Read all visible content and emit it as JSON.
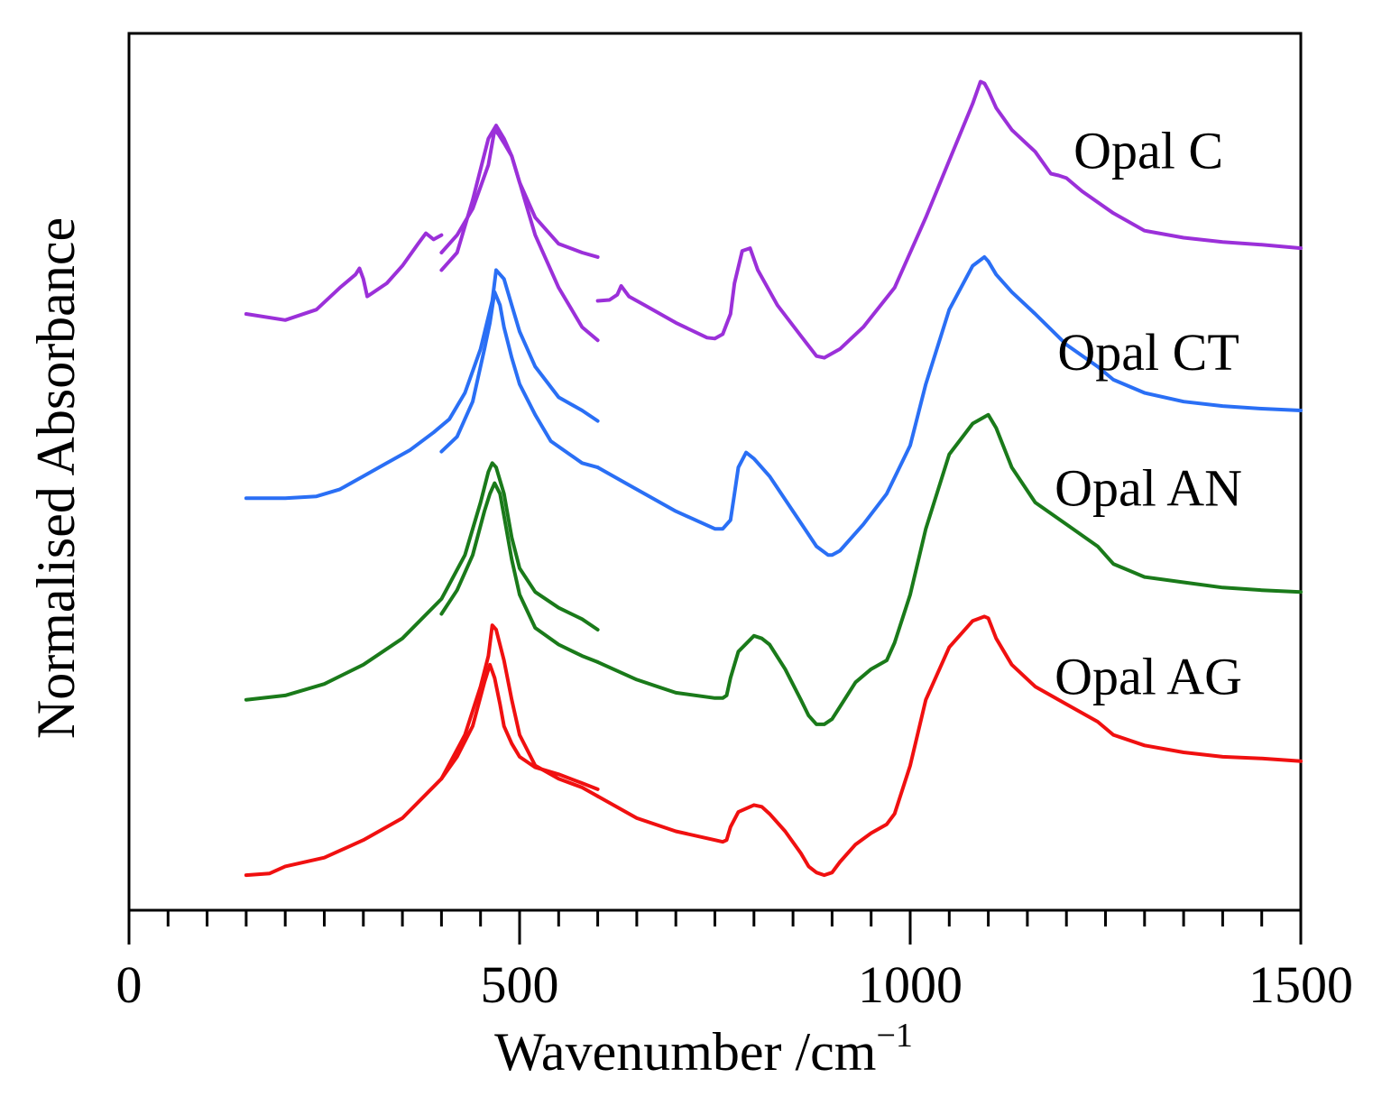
{
  "chart_data": {
    "type": "line",
    "title": "",
    "xlabel": "Wavenumber /cm",
    "xlabel_superscript": "−1",
    "ylabel": "Normalised Absorbance",
    "xlim": [
      0,
      1500
    ],
    "x_major_ticks": [
      0,
      500,
      1000,
      1500
    ],
    "x_tick_labels": [
      "0",
      "500",
      "1000",
      "1500"
    ],
    "x_minor_step": 50,
    "y_ticks_shown": false,
    "units_note": "y values are offset normalised absorbance on an arbitrary 0-100 scale",
    "ylim": [
      0,
      100
    ],
    "series": [
      {
        "name": "Opal C",
        "color": "#9b30d9",
        "segments": [
          {
            "x": [
              150,
              200,
              240,
              270,
              290,
              295,
              300,
              305,
              310,
              330,
              350,
              370,
              380,
              390,
              400
            ],
            "y": [
              68,
              67.3,
              68.5,
              71,
              72.5,
              73.2,
              72,
              70,
              70.3,
              71.5,
              73.5,
              76,
              77.2,
              76.5,
              77
            ]
          },
          {
            "x": [
              400,
              410,
              420,
              440,
              460,
              470,
              480,
              490,
              500,
              520,
              550,
              580,
              600
            ],
            "y": [
              73,
              74,
              75,
              81,
              88,
              89.5,
              88,
              86,
              83,
              79,
              76,
              75,
              74.5
            ]
          },
          {
            "x": [
              400,
              420,
              440,
              460,
              468,
              473,
              480,
              490,
              500,
              520,
              550,
              580,
              600
            ],
            "y": [
              75,
              77,
              80,
              85,
              89,
              88.5,
              87.5,
              86,
              83,
              77,
              71,
              66.5,
              65
            ]
          },
          {
            "x": [
              600,
              615,
              625,
              630,
              640,
              660,
              700,
              740,
              750,
              760,
              770,
              775,
              785,
              795,
              805,
              830,
              860,
              880,
              890,
              910,
              940,
              980,
              1020,
              1050,
              1080,
              1090,
              1095,
              1100,
              1110,
              1130,
              1160,
              1180,
              1190,
              1200,
              1220,
              1260,
              1300,
              1350,
              1400,
              1450,
              1500
            ],
            "y": [
              69.5,
              69.6,
              70.2,
              71.2,
              70,
              69,
              67,
              65.3,
              65.2,
              65.7,
              68,
              71.5,
              75.2,
              75.5,
              73,
              69,
              65.5,
              63.2,
              63,
              64,
              66.5,
              71,
              79,
              85.5,
              92,
              94.5,
              94.3,
              93.5,
              91.5,
              89,
              86.5,
              84,
              83.8,
              83.5,
              82,
              79.5,
              77.5,
              76.7,
              76.2,
              75.9,
              75.5
            ]
          }
        ]
      },
      {
        "name": "Opal CT",
        "color": "#2a6ff5",
        "segments": [
          {
            "x": [
              150,
              200,
              240,
              270,
              300,
              330,
              360,
              390,
              410,
              430,
              450,
              465,
              470,
              480,
              490,
              500,
              520,
              550,
              580,
              600
            ],
            "y": [
              47,
              47,
              47.2,
              48,
              49.5,
              51,
              52.5,
              54.5,
              56,
              59,
              64,
              69.5,
              73,
              72,
              69,
              66,
              62,
              58.5,
              57,
              55.8
            ]
          },
          {
            "x": [
              400,
              420,
              440,
              455,
              462,
              468,
              475,
              480,
              490,
              500,
              520,
              540,
              580,
              600
            ],
            "y": [
              52.3,
              54,
              58,
              64,
              67,
              70.5,
              69,
              66.5,
              63,
              60,
              56.5,
              53.5,
              51,
              50.5
            ]
          },
          {
            "x": [
              600,
              640,
              700,
              750,
              760,
              770,
              775,
              780,
              790,
              800,
              820,
              850,
              880,
              895,
              900,
              910,
              940,
              970,
              1000,
              1020,
              1050,
              1080,
              1095,
              1100,
              1110,
              1130,
              1160,
              1200,
              1240,
              1260,
              1300,
              1350,
              1400,
              1450,
              1500
            ],
            "y": [
              50.5,
              48.5,
              45.5,
              43.5,
              43.5,
              44.5,
              47.5,
              50.5,
              52.2,
              51.5,
              49.5,
              45.5,
              41.5,
              40.5,
              40.5,
              41,
              44,
              47.5,
              53,
              60,
              68.5,
              73.5,
              74.5,
              74,
              72.5,
              70.5,
              68,
              64.5,
              62,
              60.5,
              59,
              58,
              57.5,
              57.2,
              57
            ]
          }
        ]
      },
      {
        "name": "Opal AN",
        "color": "#1a7a1a",
        "segments": [
          {
            "x": [
              150,
              200,
              250,
              300,
              350,
              400,
              430,
              450,
              460,
              465,
              470,
              480,
              490,
              500,
              520,
              550,
              580,
              600
            ],
            "y": [
              24,
              24.5,
              25.8,
              28,
              31,
              35.5,
              40.5,
              46.5,
              50,
              51,
              50.5,
              47.5,
              42.5,
              39,
              36.3,
              34.5,
              33.2,
              32
            ]
          },
          {
            "x": [
              400,
              420,
              440,
              455,
              462,
              468,
              475,
              480,
              490,
              500,
              520,
              550,
              580,
              600
            ],
            "y": [
              33.8,
              36.5,
              40.5,
              45.5,
              47.5,
              48.7,
              47.5,
              45,
              40,
              36,
              32.2,
              30.3,
              29,
              28.3
            ]
          },
          {
            "x": [
              600,
              650,
              700,
              750,
              760,
              765,
              770,
              780,
              800,
              810,
              820,
              840,
              860,
              870,
              880,
              890,
              900,
              910,
              930,
              950,
              970,
              980,
              1000,
              1020,
              1050,
              1080,
              1100,
              1110,
              1130,
              1160,
              1200,
              1240,
              1260,
              1300,
              1350,
              1400,
              1450,
              1500
            ],
            "y": [
              28.3,
              26.3,
              24.8,
              24.2,
              24.2,
              24.5,
              26.5,
              29.5,
              31.3,
              31,
              30.3,
              27.5,
              24,
              22.2,
              21.2,
              21.2,
              21.8,
              23.2,
              26,
              27.5,
              28.5,
              30.5,
              36,
              43.5,
              52,
              55.5,
              56.5,
              55,
              50.5,
              46.5,
              44,
              41.5,
              39.5,
              38,
              37.4,
              36.8,
              36.5,
              36.3
            ]
          }
        ]
      },
      {
        "name": "Opal AG",
        "color": "#f01010",
        "segments": [
          {
            "x": [
              150,
              180,
              200,
              250,
              300,
              350,
              400,
              430,
              450,
              460,
              465,
              470,
              480,
              490,
              500,
              520,
              550,
              580,
              600
            ],
            "y": [
              4,
              4.2,
              5,
              6,
              8,
              10.5,
              15,
              20,
              25.5,
              29,
              32.5,
              32,
              28.5,
              24,
              20,
              16.5,
              15,
              14,
              13
            ]
          },
          {
            "x": [
              400,
              420,
              440,
              455,
              462,
              468,
              475,
              480,
              490,
              500,
              520,
              550,
              580,
              600
            ],
            "y": [
              15,
              17.5,
              21,
              26,
              28,
              26.5,
              23.5,
              21,
              19,
              17.5,
              16.3,
              15.5,
              14.5,
              13.8
            ]
          },
          {
            "x": [
              600,
              650,
              700,
              750,
              760,
              765,
              770,
              780,
              800,
              810,
              820,
              840,
              860,
              870,
              880,
              890,
              900,
              910,
              930,
              950,
              970,
              980,
              1000,
              1020,
              1050,
              1080,
              1095,
              1100,
              1110,
              1130,
              1160,
              1200,
              1240,
              1260,
              1300,
              1350,
              1400,
              1450,
              1500
            ],
            "y": [
              13,
              10.5,
              9,
              8,
              7.8,
              8,
              9.5,
              11.2,
              12,
              11.8,
              11,
              9,
              6.5,
              5,
              4.3,
              4,
              4.3,
              5.5,
              7.5,
              8.8,
              9.8,
              11,
              16.5,
              24,
              30,
              33,
              33.5,
              33.3,
              31,
              28,
              25.5,
              23.5,
              21.5,
              20,
              18.8,
              18,
              17.5,
              17.3,
              17
            ]
          }
        ]
      }
    ],
    "series_labels": [
      {
        "text": "Opal C",
        "anchor_x": 1305,
        "anchor_y": 86
      },
      {
        "text": "Opal CT",
        "anchor_x": 1305,
        "anchor_y": 63
      },
      {
        "text": "Opal AN",
        "anchor_x": 1305,
        "anchor_y": 47.5
      },
      {
        "text": "Opal AG",
        "anchor_x": 1305,
        "anchor_y": 26
      }
    ]
  }
}
